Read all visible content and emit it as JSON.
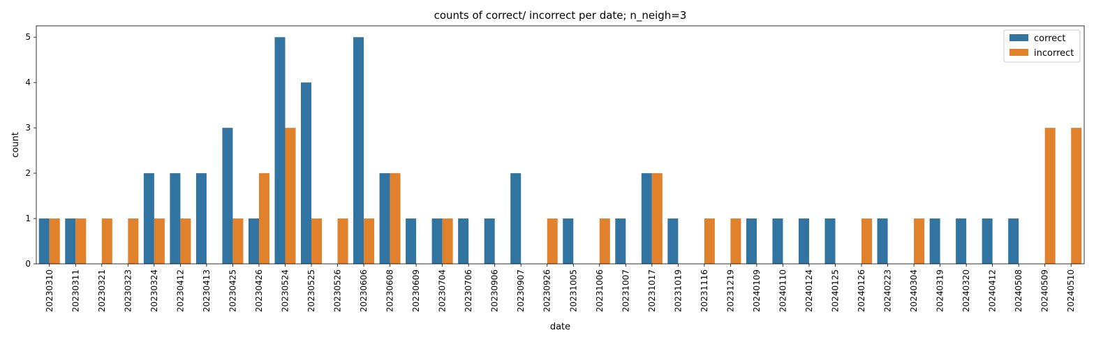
{
  "chart_data": {
    "type": "bar",
    "title": "counts of correct/ incorrect per date; n_neigh=3",
    "xlabel": "date",
    "ylabel": "count",
    "ylim": [
      0,
      5.25
    ],
    "yticks": [
      0,
      1,
      2,
      3,
      4,
      5
    ],
    "grid": false,
    "legend_position": "top-right",
    "categories": [
      "20230310",
      "20230311",
      "20230321",
      "20230323",
      "20230324",
      "20230412",
      "20230413",
      "20230425",
      "20230426",
      "20230524",
      "20230525",
      "20230526",
      "20230606",
      "20230608",
      "20230609",
      "20230704",
      "20230706",
      "20230906",
      "20230907",
      "20230926",
      "20231005",
      "20231006",
      "20231007",
      "20231017",
      "20231019",
      "20231116",
      "20231219",
      "20240109",
      "20240110",
      "20240124",
      "20240125",
      "20240126",
      "20240223",
      "20240304",
      "20240319",
      "20240320",
      "20240412",
      "20240508",
      "20240509",
      "20240510"
    ],
    "series": [
      {
        "name": "correct",
        "color": "#3274a1",
        "values": [
          1,
          1,
          0,
          0,
          2,
          2,
          2,
          3,
          1,
          5,
          4,
          0,
          5,
          2,
          1,
          1,
          1,
          1,
          2,
          0,
          1,
          0,
          1,
          2,
          1,
          0,
          0,
          1,
          1,
          1,
          1,
          0,
          1,
          0,
          1,
          1,
          1,
          1,
          0,
          0
        ]
      },
      {
        "name": "incorrect",
        "color": "#e1812c",
        "values": [
          1,
          1,
          1,
          1,
          1,
          1,
          0,
          1,
          2,
          3,
          1,
          1,
          1,
          2,
          0,
          1,
          0,
          0,
          0,
          1,
          0,
          1,
          0,
          2,
          0,
          1,
          1,
          0,
          0,
          0,
          0,
          1,
          0,
          1,
          0,
          0,
          0,
          0,
          3,
          3
        ]
      }
    ]
  }
}
